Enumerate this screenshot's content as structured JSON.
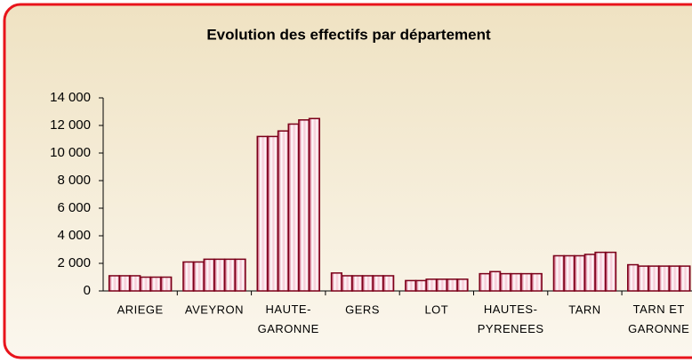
{
  "chart_data": {
    "type": "bar",
    "title": "Evolution des effectifs par département",
    "categories": [
      "ARIEGE",
      "AVEYRON",
      "HAUTE-GARONNE",
      "GERS",
      "LOT",
      "HAUTES-PYRENEES",
      "TARN",
      "TARN ET GARONNE"
    ],
    "series": [
      {
        "color": "#7a0019",
        "values": [
          1100,
          2100,
          11200,
          1300,
          750,
          1250,
          2550,
          1900
        ]
      },
      {
        "color": "#7a0019",
        "values": [
          1100,
          2100,
          11200,
          1100,
          750,
          1400,
          2550,
          1800
        ]
      },
      {
        "color": "#7a0019",
        "values": [
          1100,
          2300,
          11600,
          1100,
          850,
          1250,
          2550,
          1800
        ]
      },
      {
        "color": "#7a0019",
        "values": [
          1000,
          2300,
          12100,
          1100,
          850,
          1250,
          2650,
          1800
        ]
      },
      {
        "color": "#7a0019",
        "values": [
          1000,
          2300,
          12400,
          1100,
          850,
          1250,
          2800,
          1800
        ]
      },
      {
        "color": "#7a0019",
        "values": [
          1000,
          2300,
          12500,
          1100,
          850,
          1250,
          2800,
          1800
        ]
      }
    ],
    "ylim": [
      0,
      14000
    ],
    "yticks": [
      0,
      {
        "value": 2000,
        "label": "2 000"
      },
      {
        "value": 4000,
        "label": "4 000"
      },
      {
        "value": 6000,
        "label": "6 000"
      },
      {
        "value": 8000,
        "label": "8 000"
      },
      {
        "value": 10000,
        "label": "10 000"
      },
      {
        "value": 12000,
        "label": "12 000"
      },
      {
        "value": 14000,
        "label": "14 000"
      }
    ],
    "grid": false
  }
}
